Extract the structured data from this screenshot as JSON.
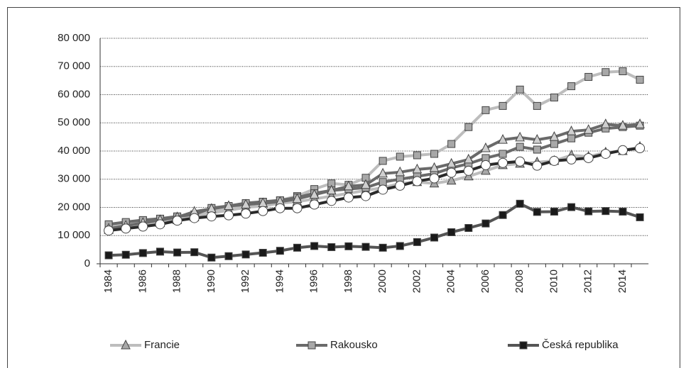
{
  "chart_data": {
    "type": "line",
    "categories": [
      1984,
      null,
      1986,
      null,
      1988,
      null,
      1990,
      null,
      1992,
      null,
      1994,
      null,
      1996,
      null,
      1998,
      null,
      2000,
      null,
      2002,
      null,
      2004,
      null,
      2006,
      null,
      2008,
      null,
      2010,
      null,
      2012,
      null,
      2014,
      null
    ],
    "ylim": [
      0,
      80000
    ],
    "yticks": [
      0,
      {
        "value": 10000,
        "label": "10 000"
      },
      {
        "value": 20000,
        "label": "20 000"
      },
      {
        "value": 30000,
        "label": "30 000"
      },
      {
        "value": 40000,
        "label": "40 000"
      },
      {
        "value": 50000,
        "label": "50 000"
      },
      {
        "value": 60000,
        "label": "60 000"
      },
      {
        "value": 70000,
        "label": "70 000"
      },
      {
        "value": 80000,
        "label": "80 000"
      }
    ],
    "grid": true,
    "legend": "bottom",
    "series": [
      {
        "color": "#bdbdbd",
        "marker": "square",
        "marker_color": "#a8a8a8",
        "values": [
          13500,
          14500,
          15300,
          15800,
          16500,
          17000,
          19000,
          20000,
          21000,
          22000,
          22500,
          24000,
          26500,
          28500,
          28000,
          30500,
          36500,
          38000,
          38500,
          39000,
          42500,
          48500,
          54500,
          56000,
          61800,
          56000,
          59000,
          63000,
          66300,
          68000,
          68300,
          65300
        ]
      },
      {
        "name": "Francie",
        "color": "#bdbdbd",
        "marker": "triangle",
        "marker_color": "#a8a8a8",
        "values": [
          12000,
          13000,
          14000,
          14500,
          15500,
          16500,
          18000,
          19000,
          20000,
          20500,
          21500,
          22000,
          23000,
          24000,
          25000,
          26000,
          27000,
          28500,
          29000,
          28500,
          29500,
          31000,
          33000,
          35000,
          35500,
          36000,
          36500,
          38500,
          38000,
          39500,
          40000,
          41500
        ]
      },
      {
        "name": "Rakousko",
        "color": "#6a6a6a",
        "marker": "square",
        "marker_color": "#a8a8a8",
        "values": [
          14000,
          14800,
          15500,
          16000,
          16800,
          17500,
          19800,
          20500,
          21500,
          22000,
          22500,
          23500,
          25000,
          26000,
          26500,
          27000,
          29000,
          30000,
          31000,
          32000,
          34000,
          35500,
          37500,
          39000,
          41500,
          40500,
          42500,
          44500,
          46500,
          48000,
          48500,
          49000
        ]
      },
      {
        "color": "#6a6a6a",
        "marker": "triangle",
        "marker_color": "#cfcfcf",
        "values": [
          12500,
          13500,
          14500,
          15500,
          16500,
          18500,
          19500,
          20500,
          21000,
          21500,
          22000,
          23000,
          24500,
          26000,
          27500,
          28000,
          32000,
          32500,
          33500,
          34000,
          35500,
          37000,
          41000,
          44000,
          44800,
          44000,
          45000,
          47000,
          47500,
          49500,
          49000,
          49500
        ]
      },
      {
        "color": "#2a2a2a",
        "marker": "circle",
        "marker_color": "#ffffff",
        "values": [
          11800,
          12500,
          13200,
          14000,
          15300,
          16200,
          16800,
          17200,
          17800,
          18700,
          19700,
          19700,
          21000,
          22300,
          23500,
          24000,
          26300,
          27700,
          29300,
          30300,
          32300,
          33000,
          35000,
          35800,
          36300,
          34800,
          36500,
          37000,
          37500,
          39000,
          40300,
          41000
        ]
      },
      {
        "name": "Česká republika",
        "color": "#555555",
        "marker": "square",
        "marker_color": "#1a1a1a",
        "values": [
          3000,
          3200,
          3800,
          4300,
          4000,
          4100,
          2200,
          2700,
          3300,
          3900,
          4600,
          5700,
          6300,
          5900,
          6200,
          6000,
          5700,
          6300,
          7700,
          9300,
          11200,
          12700,
          14300,
          17300,
          21300,
          18400,
          18500,
          20100,
          18600,
          18700,
          18500,
          16500
        ]
      }
    ]
  }
}
